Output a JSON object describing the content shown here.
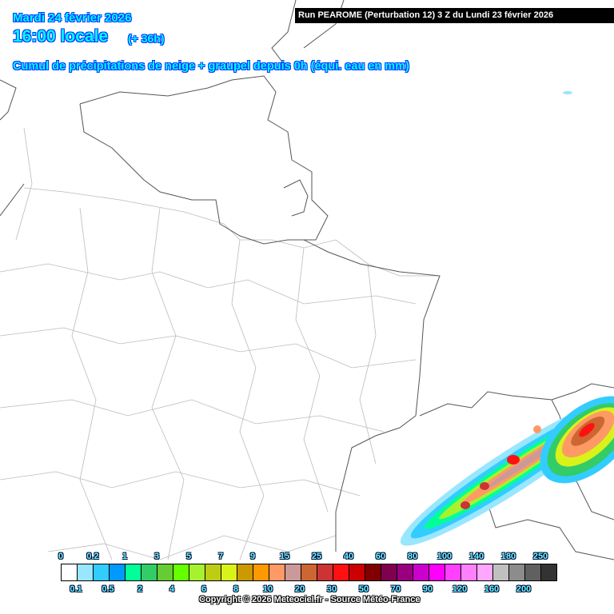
{
  "header": {
    "date": "Mardi 24 février 2026",
    "time": "16:00 locale",
    "lead": "(+ 36h)",
    "subtitle": "Cumul de précipitations de neige + graupel depuis 0h (équi. eau en mm)",
    "run": "Run PEAROME (Perturbation 12) 3 Z du Lundi 23 février 2026"
  },
  "legend": {
    "labels_top": [
      "0",
      "0.2",
      "1",
      "3",
      "5",
      "7",
      "9",
      "15",
      "25",
      "40",
      "60",
      "80",
      "100",
      "140",
      "180",
      "250"
    ],
    "labels_bottom": [
      "0.1",
      "0.5",
      "2",
      "4",
      "6",
      "8",
      "10",
      "20",
      "30",
      "50",
      "70",
      "90",
      "120",
      "160",
      "200"
    ],
    "colors": [
      "#ffffff",
      "#99e6ff",
      "#33ccff",
      "#0099ff",
      "#00ff99",
      "#33cc66",
      "#66cc33",
      "#66ff00",
      "#a6f22e",
      "#bfcc14",
      "#d9f21a",
      "#cc9900",
      "#ff9900",
      "#ff9966",
      "#cc9999",
      "#cc6633",
      "#cc3333",
      "#ff1111",
      "#cc0000",
      "#800000",
      "#800050",
      "#990080",
      "#cc00cc",
      "#ff00ff",
      "#ff40ff",
      "#ff80ff",
      "#ffa6ff",
      "#c0c0c0",
      "#8c8c8c",
      "#606060",
      "#333333"
    ]
  },
  "copyright": "Copyright © 2026 Meteociel.fr - Source Météo-France"
}
